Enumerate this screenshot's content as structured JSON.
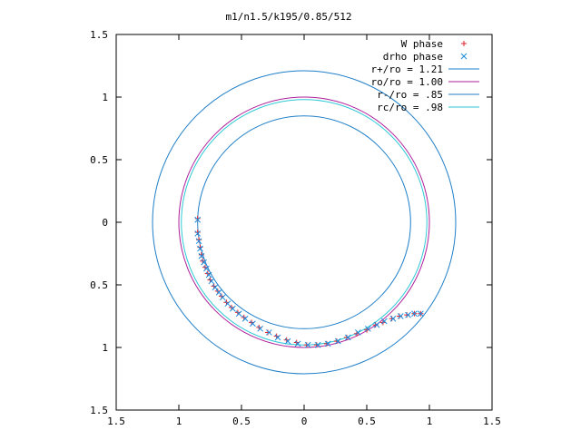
{
  "chart_data": {
    "type": "scatter",
    "title": "m1/n1.5/k195/0.85/512",
    "xlim": [
      -1.5,
      1.5
    ],
    "ylim": [
      -1.5,
      1.5
    ],
    "xticks": [
      -1.5,
      -1,
      -0.5,
      0,
      0.5,
      1,
      1.5
    ],
    "yticks": [
      -1.5,
      -1,
      -0.5,
      0,
      0.5,
      1,
      1.5
    ],
    "xtick_labels": [
      "1.5",
      "1",
      "0.5",
      "0",
      "0.5",
      "1",
      "1.5"
    ],
    "ytick_labels": [
      "1.5",
      "1",
      "0.5",
      "0",
      "0.5",
      "1",
      "1.5"
    ],
    "grid": false,
    "legend_position": "top-right",
    "series": [
      {
        "name": "W phase",
        "kind": "points",
        "marker": "plus",
        "color": "#e0202a",
        "points": [
          [
            -0.85,
            0.03
          ],
          [
            -0.85,
            -0.08
          ],
          [
            -0.84,
            -0.14
          ],
          [
            -0.83,
            -0.2
          ],
          [
            -0.82,
            -0.26
          ],
          [
            -0.81,
            -0.31
          ],
          [
            -0.79,
            -0.36
          ],
          [
            -0.77,
            -0.41
          ],
          [
            -0.75,
            -0.46
          ],
          [
            -0.72,
            -0.51
          ],
          [
            -0.69,
            -0.55
          ],
          [
            -0.66,
            -0.59
          ],
          [
            -0.62,
            -0.64
          ],
          [
            -0.58,
            -0.68
          ],
          [
            -0.53,
            -0.72
          ],
          [
            -0.48,
            -0.76
          ],
          [
            -0.42,
            -0.8
          ],
          [
            -0.36,
            -0.84
          ],
          [
            -0.29,
            -0.88
          ],
          [
            -0.22,
            -0.91
          ],
          [
            -0.14,
            -0.94
          ],
          [
            -0.06,
            -0.96
          ],
          [
            0.02,
            -0.98
          ],
          [
            0.1,
            -0.98
          ],
          [
            0.18,
            -0.97
          ],
          [
            0.26,
            -0.95
          ],
          [
            0.34,
            -0.92
          ],
          [
            0.42,
            -0.89
          ],
          [
            0.5,
            -0.86
          ],
          [
            0.57,
            -0.82
          ],
          [
            0.63,
            -0.8
          ],
          [
            0.7,
            -0.77
          ],
          [
            0.76,
            -0.75
          ],
          [
            0.82,
            -0.74
          ],
          [
            0.88,
            -0.73
          ],
          [
            0.93,
            -0.73
          ]
        ]
      },
      {
        "name": "drho phase",
        "kind": "points",
        "marker": "cross",
        "color": "#1a8fe0",
        "points": [
          [
            -0.85,
            0.02
          ],
          [
            -0.85,
            -0.09
          ],
          [
            -0.84,
            -0.15
          ],
          [
            -0.83,
            -0.21
          ],
          [
            -0.82,
            -0.27
          ],
          [
            -0.8,
            -0.32
          ],
          [
            -0.78,
            -0.37
          ],
          [
            -0.76,
            -0.42
          ],
          [
            -0.74,
            -0.47
          ],
          [
            -0.71,
            -0.52
          ],
          [
            -0.68,
            -0.56
          ],
          [
            -0.65,
            -0.6
          ],
          [
            -0.61,
            -0.65
          ],
          [
            -0.57,
            -0.69
          ],
          [
            -0.52,
            -0.73
          ],
          [
            -0.47,
            -0.77
          ],
          [
            -0.41,
            -0.81
          ],
          [
            -0.35,
            -0.85
          ],
          [
            -0.28,
            -0.88
          ],
          [
            -0.21,
            -0.92
          ],
          [
            -0.13,
            -0.95
          ],
          [
            -0.05,
            -0.97
          ],
          [
            0.03,
            -0.98
          ],
          [
            0.11,
            -0.98
          ],
          [
            0.19,
            -0.97
          ],
          [
            0.27,
            -0.95
          ],
          [
            0.35,
            -0.92
          ],
          [
            0.43,
            -0.88
          ],
          [
            0.51,
            -0.85
          ],
          [
            0.58,
            -0.82
          ],
          [
            0.64,
            -0.79
          ],
          [
            0.71,
            -0.77
          ],
          [
            0.77,
            -0.75
          ],
          [
            0.83,
            -0.74
          ],
          [
            0.88,
            -0.73
          ],
          [
            0.93,
            -0.73
          ]
        ]
      },
      {
        "name": "r+/ro = 1.21",
        "kind": "circle",
        "radius": 1.21,
        "color": "#1f7fc8"
      },
      {
        "name": "ro/ro = 1.00",
        "kind": "circle",
        "radius": 1.0,
        "color": "#b0209b"
      },
      {
        "name": "r-/ro = .85",
        "kind": "circle",
        "radius": 0.85,
        "color": "#1f7fc8"
      },
      {
        "name": "rc/ro = .98",
        "kind": "circle",
        "radius": 0.98,
        "color": "#2ec9d6"
      }
    ]
  }
}
